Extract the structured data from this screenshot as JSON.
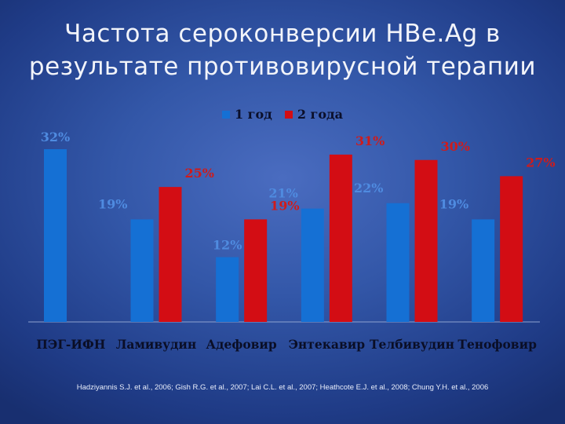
{
  "title_line1": "Частота сероконверсии HBe.Ag в",
  "title_line2": "результате противовирусной терапии",
  "source": "Hadziyannis S.J. et al., 2006; Gish R.G. et al., 2007; Lai C.L. et al., 2007; Heathcote E.J. et al., 2008; Chung Y.H. et al., 2006",
  "colors": {
    "series1": "#1570d4",
    "series2": "#d30d14",
    "label1": "#4f8be0",
    "label2": "#cf1b1b"
  },
  "chart_data": {
    "type": "bar",
    "categories": [
      "ПЭГ-ИФН",
      "Ламивудин",
      "Адефовир",
      "Энтекавир",
      "Телбивудин",
      "Тенофовир"
    ],
    "series": [
      {
        "name": "1 год",
        "values": [
          32,
          19,
          12,
          21,
          22,
          19
        ],
        "labels": [
          "32%",
          "19%",
          "12%",
          "21%",
          "22%",
          "19%"
        ]
      },
      {
        "name": "2 года",
        "values": [
          null,
          25,
          19,
          31,
          30,
          27
        ],
        "labels": [
          "",
          "25%",
          "19%",
          "31%",
          "30%",
          "27%"
        ]
      }
    ],
    "ylim": [
      0,
      35
    ],
    "legend": "top",
    "grid": false
  }
}
